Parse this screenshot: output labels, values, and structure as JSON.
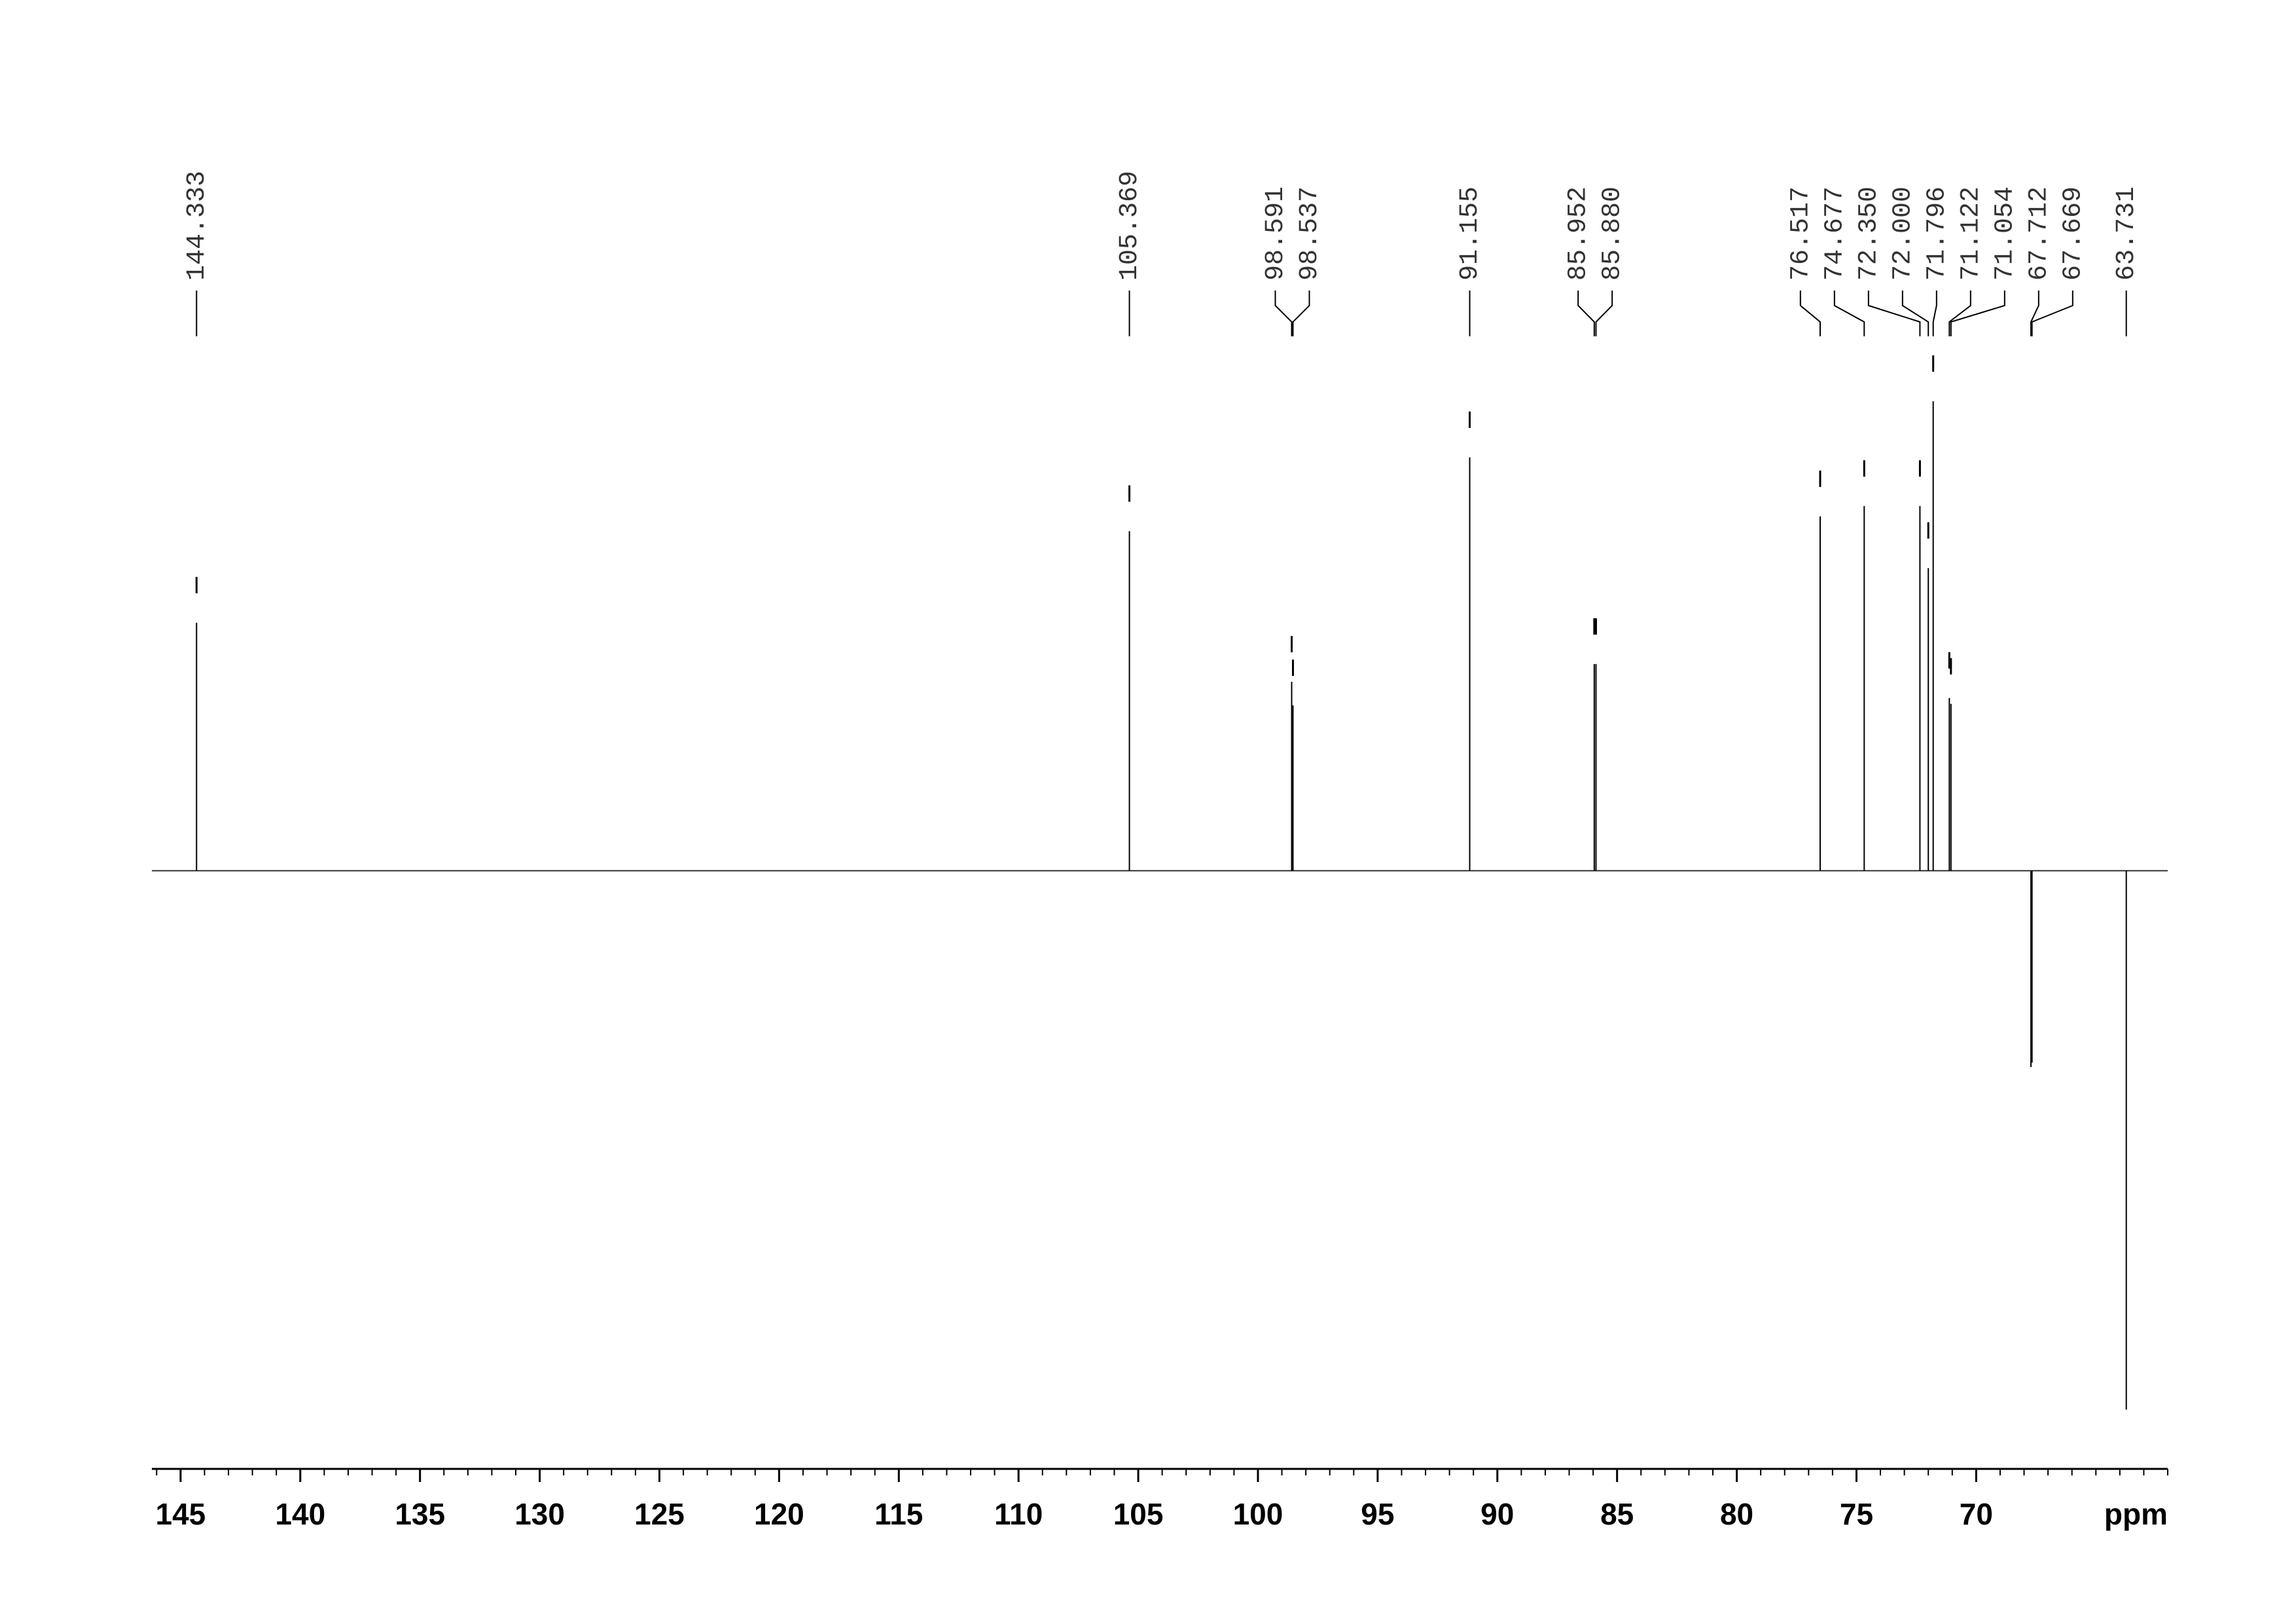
{
  "chart_data": {
    "type": "spectrum",
    "x": [
      144.333,
      105.369,
      98.591,
      98.537,
      91.155,
      85.952,
      85.88,
      76.517,
      74.677,
      72.35,
      72.0,
      71.796,
      71.122,
      71.054,
      67.712,
      67.669,
      63.731
    ],
    "x_labels": [
      "144.333",
      "105.369",
      "98.591",
      "98.537",
      "91.155",
      "85.952",
      "85.880",
      "76.517",
      "74.677",
      "72.350",
      "72.000",
      "71.796",
      "71.122",
      "71.054",
      "67.712",
      "67.669",
      "63.731"
    ],
    "values": [
      168,
      230,
      128,
      112,
      280,
      140,
      140,
      240,
      247,
      247,
      205,
      318,
      117,
      113,
      -133,
      -130,
      -365
    ],
    "color": "#000000",
    "xlim": [
      146.2,
      62.0
    ],
    "ylim": [
      -410,
      350
    ],
    "xticks": [
      145,
      140,
      135,
      130,
      125,
      120,
      115,
      110,
      105,
      100,
      95,
      90,
      85,
      80,
      75,
      70
    ],
    "minor_tick_step": 1,
    "x_label": "ppm"
  }
}
